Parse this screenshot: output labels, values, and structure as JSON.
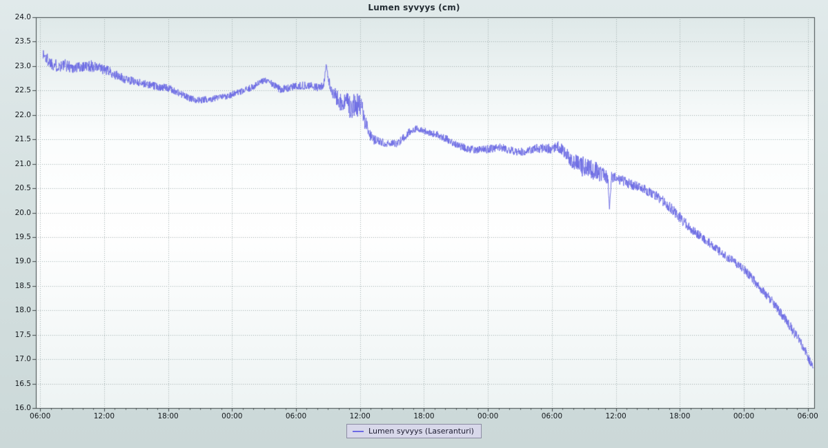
{
  "page": {
    "background_top": "#e1eaeb",
    "background_bottom": "#cbd8d8"
  },
  "chart": {
    "title": "Lumen syvyys (cm)",
    "legend": {
      "label": "Lumen syvyys (Laseranturi)",
      "background": "#d8d8ea",
      "border": "#8a8aa2"
    },
    "style": {
      "line_color": "#6c6ae4",
      "grid_color": "#96a4a4",
      "axis_color": "#3c4446",
      "plot_bg_stops": [
        [
          0,
          "#dfe9e9"
        ],
        [
          0.3,
          "#fbfdfd"
        ],
        [
          0.55,
          "#ffffff"
        ],
        [
          1,
          "#eef4f4"
        ]
      ]
    }
  },
  "chart_data": {
    "type": "line",
    "title": "Lumen syvyys (cm)",
    "xlabel": "",
    "ylabel": "",
    "ylim": [
      16.0,
      24.0
    ],
    "y_tick_step": 0.5,
    "y_tick_labels": [
      "16.0",
      "16.5",
      "17.0",
      "17.5",
      "18.0",
      "18.5",
      "19.0",
      "19.5",
      "20.0",
      "20.5",
      "21.0",
      "21.5",
      "22.0",
      "22.5",
      "23.0",
      "23.5",
      "24.0"
    ],
    "x_tick_labels": [
      "06:00",
      "12:00",
      "18:00",
      "00:00",
      "06:00",
      "12:00",
      "18:00",
      "00:00",
      "06:00",
      "12:00",
      "18:00",
      "00:00",
      "06:00"
    ],
    "x_tick_hours": [
      0,
      6,
      12,
      18,
      24,
      30,
      36,
      42,
      48,
      54,
      60,
      66,
      72
    ],
    "x_range_hours": [
      -0.4,
      72.6
    ],
    "grid": "dotted",
    "legend_position": "bottom-center",
    "series": [
      {
        "name": "Lumen syvyys (Laseranturi)",
        "description": "Noisy laser-sensor snow depth declining from about 23.3 cm to 16.8 cm over three days; anchors are [hours_after_first_0600, depth_cm, noise_amplitude_cm]",
        "sample_step_hours": 0.025,
        "seed": 1337,
        "anchors": [
          [
            0.25,
            23.25,
            0.14
          ],
          [
            0.8,
            23.1,
            0.14
          ],
          [
            1.6,
            23.0,
            0.13
          ],
          [
            2.4,
            23.02,
            0.13
          ],
          [
            3.2,
            22.96,
            0.12
          ],
          [
            4.0,
            23.0,
            0.12
          ],
          [
            4.8,
            23.0,
            0.12
          ],
          [
            5.6,
            22.95,
            0.11
          ],
          [
            6.4,
            22.9,
            0.1
          ],
          [
            7.2,
            22.8,
            0.1
          ],
          [
            8.0,
            22.73,
            0.09
          ],
          [
            9.0,
            22.68,
            0.08
          ],
          [
            10.0,
            22.63,
            0.08
          ],
          [
            11.0,
            22.58,
            0.08
          ],
          [
            12.0,
            22.55,
            0.08
          ],
          [
            13.0,
            22.45,
            0.08
          ],
          [
            14.0,
            22.34,
            0.07
          ],
          [
            15.0,
            22.3,
            0.07
          ],
          [
            16.0,
            22.33,
            0.07
          ],
          [
            17.0,
            22.36,
            0.07
          ],
          [
            18.0,
            22.42,
            0.07
          ],
          [
            19.0,
            22.48,
            0.07
          ],
          [
            20.0,
            22.58,
            0.07
          ],
          [
            20.8,
            22.68,
            0.07
          ],
          [
            21.3,
            22.72,
            0.07
          ],
          [
            21.9,
            22.6,
            0.08
          ],
          [
            22.6,
            22.52,
            0.08
          ],
          [
            23.4,
            22.56,
            0.08
          ],
          [
            24.2,
            22.6,
            0.08
          ],
          [
            25.2,
            22.6,
            0.08
          ],
          [
            26.1,
            22.56,
            0.08
          ],
          [
            26.6,
            22.62,
            0.08
          ],
          [
            26.85,
            23.02,
            0.06
          ],
          [
            27.15,
            22.6,
            0.12
          ],
          [
            27.7,
            22.38,
            0.16
          ],
          [
            28.3,
            22.25,
            0.22
          ],
          [
            29.0,
            22.18,
            0.26
          ],
          [
            29.6,
            22.2,
            0.27
          ],
          [
            30.1,
            22.15,
            0.24
          ],
          [
            30.7,
            21.7,
            0.14
          ],
          [
            31.2,
            21.5,
            0.1
          ],
          [
            32.0,
            21.45,
            0.08
          ],
          [
            32.8,
            21.4,
            0.08
          ],
          [
            33.5,
            21.42,
            0.08
          ],
          [
            34.2,
            21.55,
            0.08
          ],
          [
            34.8,
            21.7,
            0.08
          ],
          [
            35.4,
            21.72,
            0.08
          ],
          [
            36.2,
            21.66,
            0.07
          ],
          [
            37.2,
            21.6,
            0.07
          ],
          [
            38.2,
            21.5,
            0.08
          ],
          [
            39.2,
            21.38,
            0.08
          ],
          [
            40.2,
            21.3,
            0.08
          ],
          [
            41.2,
            21.28,
            0.08
          ],
          [
            42.2,
            21.3,
            0.09
          ],
          [
            43.2,
            21.33,
            0.09
          ],
          [
            44.2,
            21.28,
            0.09
          ],
          [
            45.2,
            21.24,
            0.09
          ],
          [
            46.2,
            21.3,
            0.09
          ],
          [
            47.2,
            21.33,
            0.1
          ],
          [
            48.0,
            21.3,
            0.1
          ],
          [
            48.6,
            21.35,
            0.12
          ],
          [
            49.3,
            21.22,
            0.14
          ],
          [
            50.0,
            21.05,
            0.17
          ],
          [
            50.8,
            20.95,
            0.21
          ],
          [
            51.6,
            20.9,
            0.21
          ],
          [
            52.4,
            20.82,
            0.19
          ],
          [
            53.0,
            20.76,
            0.15
          ],
          [
            53.25,
            20.7,
            0.12
          ],
          [
            53.4,
            20.1,
            0.04
          ],
          [
            53.6,
            20.72,
            0.13
          ],
          [
            54.3,
            20.68,
            0.12
          ],
          [
            55.2,
            20.6,
            0.1
          ],
          [
            56.2,
            20.52,
            0.1
          ],
          [
            57.2,
            20.42,
            0.1
          ],
          [
            58.2,
            20.28,
            0.1
          ],
          [
            59.2,
            20.08,
            0.11
          ],
          [
            60.2,
            19.85,
            0.11
          ],
          [
            61.2,
            19.65,
            0.1
          ],
          [
            62.2,
            19.48,
            0.1
          ],
          [
            63.2,
            19.3,
            0.09
          ],
          [
            64.2,
            19.12,
            0.09
          ],
          [
            65.2,
            18.98,
            0.09
          ],
          [
            66.2,
            18.8,
            0.09
          ],
          [
            67.2,
            18.55,
            0.09
          ],
          [
            68.2,
            18.3,
            0.1
          ],
          [
            69.2,
            18.02,
            0.1
          ],
          [
            70.2,
            17.72,
            0.1
          ],
          [
            71.0,
            17.45,
            0.1
          ],
          [
            71.6,
            17.25,
            0.1
          ],
          [
            72.1,
            17.0,
            0.09
          ],
          [
            72.35,
            16.9,
            0.08
          ],
          [
            72.5,
            16.82,
            0.06
          ]
        ]
      }
    ]
  }
}
